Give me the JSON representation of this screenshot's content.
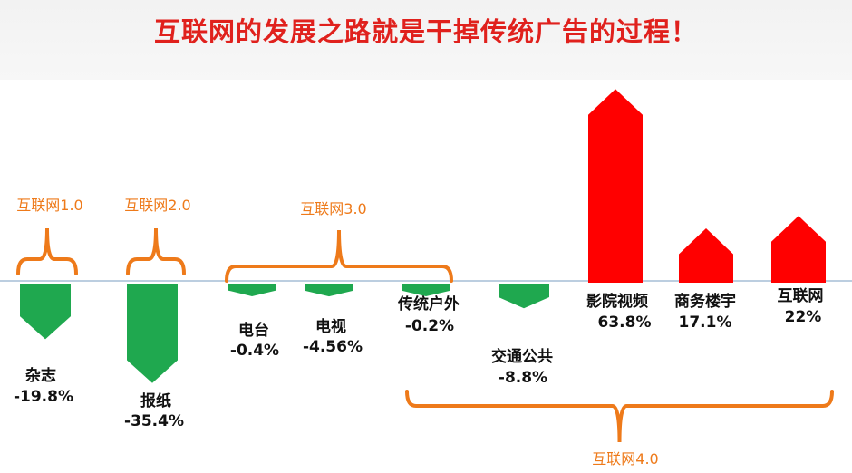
{
  "title": "互联网的发展之路就是干掉传统广告的过程！",
  "colors": {
    "positive": "#ff0000",
    "negative": "#1fa84f",
    "bracket": "#ee7a1a",
    "title": "#e0211d",
    "baseline": "#7a9cc0"
  },
  "chart_data": {
    "type": "bar",
    "categories": [
      "杂志",
      "报纸",
      "电台",
      "电视",
      "传统户外",
      "交通公共",
      "影院视频",
      "商务楼宇",
      "互联网"
    ],
    "values": [
      -19.8,
      -35.4,
      -0.4,
      -4.56,
      -0.2,
      -8.8,
      63.8,
      17.1,
      22
    ],
    "value_labels": [
      "-19.8%",
      "-35.4%",
      "-0.4%",
      "-4.56%",
      "-0.2%",
      "-8.8%",
      "63.8%",
      "17.1%",
      "22%"
    ],
    "groups": [
      {
        "label": "互联网1.0",
        "categories": [
          "杂志"
        ]
      },
      {
        "label": "互联网2.0",
        "categories": [
          "报纸"
        ]
      },
      {
        "label": "互联网3.0",
        "categories": [
          "电台",
          "电视",
          "传统户外"
        ]
      },
      {
        "label": "互联网4.0",
        "categories": [
          "交通公共",
          "影院视频",
          "商务楼宇",
          "互联网"
        ]
      }
    ]
  }
}
